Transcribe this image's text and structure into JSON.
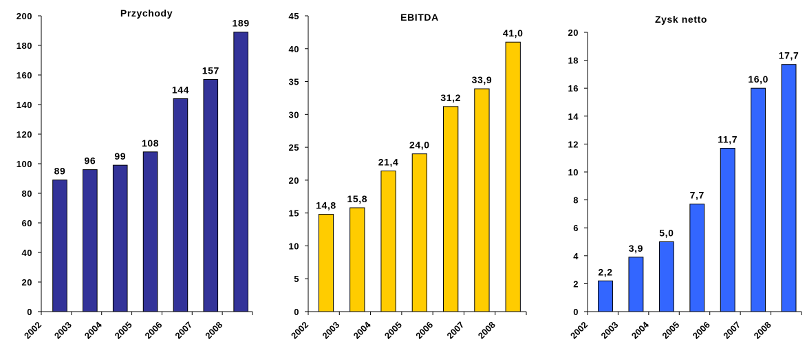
{
  "chart_data": [
    {
      "type": "bar",
      "title": "Przychody",
      "categories": [
        "2002",
        "2003",
        "2004",
        "2005",
        "2006",
        "2007",
        "2008"
      ],
      "values": [
        89,
        96,
        99,
        108,
        144,
        157,
        189
      ],
      "value_labels": [
        "89",
        "96",
        "99",
        "108",
        "144",
        "157",
        "189"
      ],
      "ylim": [
        0,
        200
      ],
      "yticks": [
        0,
        20,
        40,
        60,
        80,
        100,
        120,
        140,
        160,
        180,
        200
      ],
      "color": "#333399",
      "grid": false
    },
    {
      "type": "bar",
      "title": "EBITDA",
      "categories": [
        "2002",
        "2003",
        "2004",
        "2005",
        "2006",
        "2007",
        "2008"
      ],
      "values": [
        14.8,
        15.8,
        21.4,
        24.0,
        31.2,
        33.9,
        41.0
      ],
      "value_labels": [
        "14,8",
        "15,8",
        "21,4",
        "24,0",
        "31,2",
        "33,9",
        "41,0"
      ],
      "ylim": [
        0,
        45
      ],
      "yticks": [
        0,
        5,
        10,
        15,
        20,
        25,
        30,
        35,
        40,
        45
      ],
      "color": "#FFCC00",
      "grid": false
    },
    {
      "type": "bar",
      "title": "Zysk netto",
      "categories": [
        "2002",
        "2003",
        "2004",
        "2005",
        "2006",
        "2007",
        "2008"
      ],
      "values": [
        2.2,
        3.9,
        5.0,
        7.7,
        11.7,
        16.0,
        17.7
      ],
      "value_labels": [
        "2,2",
        "3,9",
        "5,0",
        "7,7",
        "11,7",
        "16,0",
        "17,7"
      ],
      "ylim": [
        0,
        20
      ],
      "yticks": [
        0,
        2,
        4,
        6,
        8,
        10,
        12,
        14,
        16,
        18,
        20
      ],
      "color": "#3366FF",
      "grid": false
    }
  ]
}
